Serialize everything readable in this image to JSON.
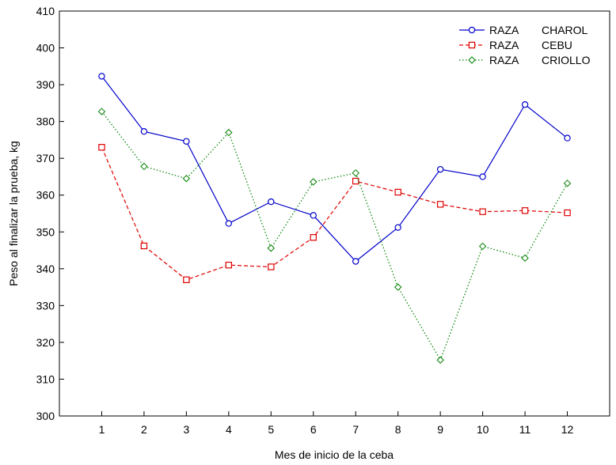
{
  "chart_data": {
    "type": "line",
    "title": "",
    "xlabel": "Mes de inicio de la ceba",
    "ylabel": "Peso al finalizar la prueba, kg",
    "x": [
      1,
      2,
      3,
      4,
      5,
      6,
      7,
      8,
      9,
      10,
      11,
      12
    ],
    "xlim": [
      0,
      13
    ],
    "ylim": [
      300,
      410
    ],
    "yticks": [
      300,
      310,
      320,
      330,
      340,
      350,
      360,
      370,
      380,
      390,
      400,
      410
    ],
    "grid": false,
    "legend_position": "top-right",
    "series": [
      {
        "name": "RAZA CHAROL",
        "legend_prefix": "RAZA",
        "legend_suffix": "CHAROL",
        "color": "#0000cc",
        "marker": "circle",
        "line_style": "solid",
        "values": [
          392.3,
          377.3,
          374.6,
          352.3,
          358.2,
          354.5,
          342.0,
          351.2,
          367.0,
          365.0,
          384.6,
          375.5
        ]
      },
      {
        "name": "RAZA CEBU",
        "legend_prefix": "RAZA",
        "legend_suffix": "CEBU",
        "color": "#e00000",
        "marker": "square",
        "line_style": "dashed",
        "values": [
          373.0,
          346.2,
          337.0,
          341.0,
          340.5,
          348.5,
          363.8,
          360.8,
          357.5,
          355.5,
          355.8,
          355.2
        ]
      },
      {
        "name": "RAZA CRIOLLO",
        "legend_prefix": "RAZA",
        "legend_suffix": "CRIOLLO",
        "color": "#008000",
        "marker": "diamond",
        "line_style": "dotted",
        "values": [
          382.7,
          367.8,
          364.5,
          377.0,
          345.6,
          363.6,
          366.0,
          335.0,
          315.2,
          346.1,
          342.9,
          363.2
        ]
      }
    ]
  }
}
